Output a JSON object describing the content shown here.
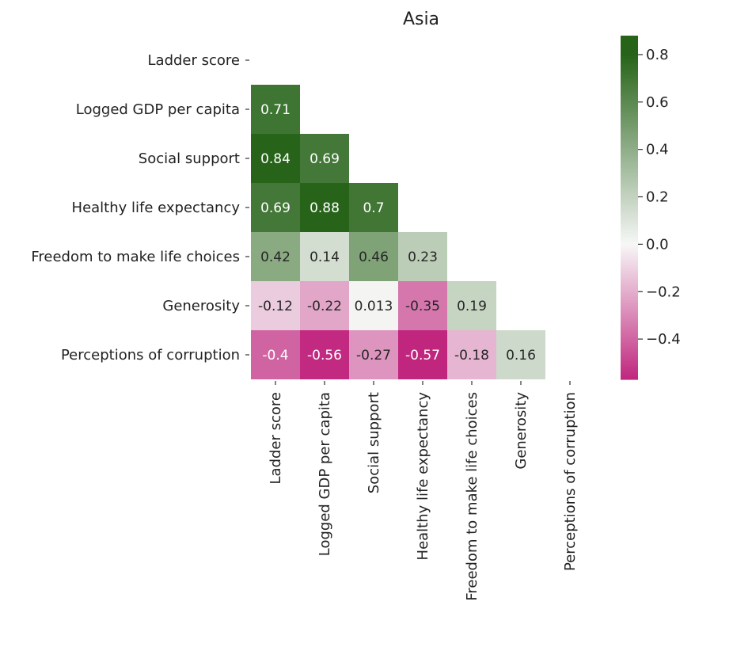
{
  "chart_data": {
    "type": "heatmap",
    "title": "Asia",
    "variables": [
      "Ladder score",
      "Logged GDP per capita",
      "Social support",
      "Healthy life expectancy",
      "Freedom to make life choices",
      "Generosity",
      "Perceptions of corruption"
    ],
    "mask": "upper triangle incl. diagonal",
    "cells": [
      {
        "row": 1,
        "col": 0,
        "value": 0.71,
        "label": "0.71"
      },
      {
        "row": 2,
        "col": 0,
        "value": 0.84,
        "label": "0.84"
      },
      {
        "row": 2,
        "col": 1,
        "value": 0.69,
        "label": "0.69"
      },
      {
        "row": 3,
        "col": 0,
        "value": 0.69,
        "label": "0.69"
      },
      {
        "row": 3,
        "col": 1,
        "value": 0.88,
        "label": "0.88"
      },
      {
        "row": 3,
        "col": 2,
        "value": 0.7,
        "label": "0.7"
      },
      {
        "row": 4,
        "col": 0,
        "value": 0.42,
        "label": "0.42"
      },
      {
        "row": 4,
        "col": 1,
        "value": 0.14,
        "label": "0.14"
      },
      {
        "row": 4,
        "col": 2,
        "value": 0.46,
        "label": "0.46"
      },
      {
        "row": 4,
        "col": 3,
        "value": 0.23,
        "label": "0.23"
      },
      {
        "row": 5,
        "col": 0,
        "value": -0.12,
        "label": "-0.12"
      },
      {
        "row": 5,
        "col": 1,
        "value": -0.22,
        "label": "-0.22"
      },
      {
        "row": 5,
        "col": 2,
        "value": 0.013,
        "label": "0.013"
      },
      {
        "row": 5,
        "col": 3,
        "value": -0.35,
        "label": "-0.35"
      },
      {
        "row": 5,
        "col": 4,
        "value": 0.19,
        "label": "0.19"
      },
      {
        "row": 6,
        "col": 0,
        "value": -0.4,
        "label": "-0.4"
      },
      {
        "row": 6,
        "col": 1,
        "value": -0.56,
        "label": "-0.56"
      },
      {
        "row": 6,
        "col": 2,
        "value": -0.27,
        "label": "-0.27"
      },
      {
        "row": 6,
        "col": 3,
        "value": -0.57,
        "label": "-0.57"
      },
      {
        "row": 6,
        "col": 4,
        "value": -0.18,
        "label": "-0.18"
      },
      {
        "row": 6,
        "col": 5,
        "value": 0.16,
        "label": "0.16"
      }
    ],
    "colorbar": {
      "min": -0.57,
      "max": 0.88,
      "vmin": -0.57,
      "vmax": 0.8,
      "ticks": [
        {
          "value": 0.8,
          "label": "0.8"
        },
        {
          "value": 0.6,
          "label": "0.6"
        },
        {
          "value": 0.4,
          "label": "0.4"
        },
        {
          "value": 0.2,
          "label": "0.2"
        },
        {
          "value": 0.0,
          "label": "0.0"
        },
        {
          "value": -0.2,
          "label": "−0.2"
        },
        {
          "value": -0.4,
          "label": "−0.4"
        }
      ]
    },
    "colormap": "PiYG",
    "colormap_stops": [
      "#c0267e",
      "#f7f7f7",
      "#276419"
    ]
  }
}
